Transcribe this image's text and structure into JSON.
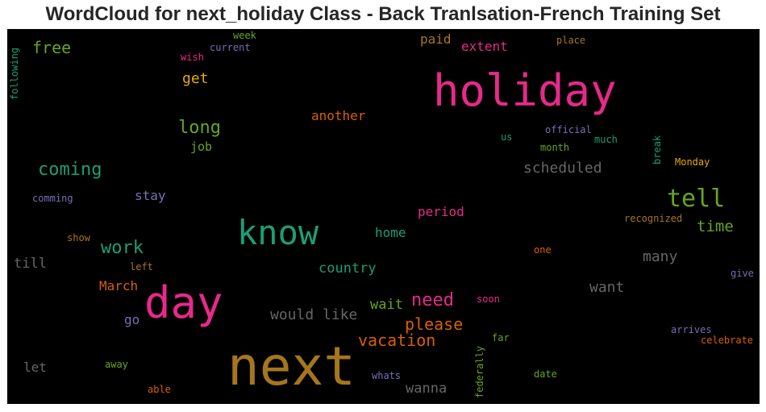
{
  "title": "WordCloud for next_holiday Class - Back Tranlsation-French Training Set",
  "colors": {
    "pink": "#e7298a",
    "gold": "#e6ab02",
    "teal": "#1b9e77",
    "green": "#66a61e",
    "orange": "#d95f02",
    "purple": "#7570b3",
    "brown": "#a6761d",
    "gray": "#666666",
    "background": "#000000"
  },
  "chart_data": {
    "type": "wordcloud",
    "title": "WordCloud for next_holiday Class - Back Tranlsation-French Training Set",
    "words": [
      {
        "text": "next",
        "size": 66,
        "color": "brown",
        "rotated": false
      },
      {
        "text": "holiday",
        "size": 54,
        "color": "pink",
        "rotated": false
      },
      {
        "text": "day",
        "size": 54,
        "color": "pink",
        "rotated": false
      },
      {
        "text": "know",
        "size": 42,
        "color": "teal",
        "rotated": false
      },
      {
        "text": "tell",
        "size": 30,
        "color": "green",
        "rotated": false
      },
      {
        "text": "coming",
        "size": 22,
        "color": "teal",
        "rotated": false
      },
      {
        "text": "long",
        "size": 22,
        "color": "green",
        "rotated": false
      },
      {
        "text": "need",
        "size": 22,
        "color": "pink",
        "rotated": false
      },
      {
        "text": "work",
        "size": 22,
        "color": "teal",
        "rotated": false
      },
      {
        "text": "free",
        "size": 20,
        "color": "green",
        "rotated": false
      },
      {
        "text": "vacation",
        "size": 20,
        "color": "orange",
        "rotated": false
      },
      {
        "text": "please",
        "size": 20,
        "color": "orange",
        "rotated": false
      },
      {
        "text": "time",
        "size": 19,
        "color": "green",
        "rotated": false
      },
      {
        "text": "would like",
        "size": 18,
        "color": "gray",
        "rotated": false
      },
      {
        "text": "scheduled",
        "size": 18,
        "color": "gray",
        "rotated": false
      },
      {
        "text": "many",
        "size": 18,
        "color": "gray",
        "rotated": false
      },
      {
        "text": "want",
        "size": 18,
        "color": "gray",
        "rotated": false
      },
      {
        "text": "get",
        "size": 18,
        "color": "gold",
        "rotated": false
      },
      {
        "text": "wait",
        "size": 17,
        "color": "green",
        "rotated": false
      },
      {
        "text": "country",
        "size": 17,
        "color": "teal",
        "rotated": false
      },
      {
        "text": "wanna",
        "size": 17,
        "color": "gray",
        "rotated": false
      },
      {
        "text": "till",
        "size": 17,
        "color": "gray",
        "rotated": false
      },
      {
        "text": "another",
        "size": 16,
        "color": "orange",
        "rotated": false
      },
      {
        "text": "March",
        "size": 16,
        "color": "orange",
        "rotated": false
      },
      {
        "text": "paid",
        "size": 16,
        "color": "brown",
        "rotated": false
      },
      {
        "text": "extent",
        "size": 16,
        "color": "pink",
        "rotated": false
      },
      {
        "text": "period",
        "size": 16,
        "color": "pink",
        "rotated": false
      },
      {
        "text": "home",
        "size": 16,
        "color": "teal",
        "rotated": false
      },
      {
        "text": "stay",
        "size": 16,
        "color": "purple",
        "rotated": false
      },
      {
        "text": "go",
        "size": 16,
        "color": "purple",
        "rotated": false
      },
      {
        "text": "let",
        "size": 16,
        "color": "gray",
        "rotated": false
      },
      {
        "text": "job",
        "size": 15,
        "color": "green",
        "rotated": false
      },
      {
        "text": "official",
        "size": 12,
        "color": "purple",
        "rotated": false
      },
      {
        "text": "Monday",
        "size": 12,
        "color": "gold",
        "rotated": false
      },
      {
        "text": "recognized",
        "size": 12,
        "color": "brown",
        "rotated": false
      },
      {
        "text": "month",
        "size": 12,
        "color": "green",
        "rotated": false
      },
      {
        "text": "much",
        "size": 12,
        "color": "teal",
        "rotated": false
      },
      {
        "text": "us",
        "size": 12,
        "color": "teal",
        "rotated": false
      },
      {
        "text": "break",
        "size": 12,
        "color": "teal",
        "rotated": true
      },
      {
        "text": "celebrate",
        "size": 12,
        "color": "orange",
        "rotated": false
      },
      {
        "text": "arrives",
        "size": 12,
        "color": "purple",
        "rotated": false
      },
      {
        "text": "give",
        "size": 12,
        "color": "purple",
        "rotated": false
      },
      {
        "text": "one",
        "size": 12,
        "color": "orange",
        "rotated": false
      },
      {
        "text": "soon",
        "size": 12,
        "color": "pink",
        "rotated": false
      },
      {
        "text": "far",
        "size": 12,
        "color": "green",
        "rotated": false
      },
      {
        "text": "date",
        "size": 12,
        "color": "green",
        "rotated": false
      },
      {
        "text": "whats",
        "size": 12,
        "color": "purple",
        "rotated": false
      },
      {
        "text": "federally",
        "size": 12,
        "color": "green",
        "rotated": true
      },
      {
        "text": "able",
        "size": 12,
        "color": "orange",
        "rotated": false
      },
      {
        "text": "away",
        "size": 12,
        "color": "green",
        "rotated": false
      },
      {
        "text": "left",
        "size": 12,
        "color": "brown",
        "rotated": false
      },
      {
        "text": "show",
        "size": 12,
        "color": "brown",
        "rotated": false
      },
      {
        "text": "comming",
        "size": 12,
        "color": "purple",
        "rotated": false
      },
      {
        "text": "wish",
        "size": 12,
        "color": "pink",
        "rotated": false
      },
      {
        "text": "week",
        "size": 12,
        "color": "green",
        "rotated": false
      },
      {
        "text": "current",
        "size": 12,
        "color": "purple",
        "rotated": false
      },
      {
        "text": "place",
        "size": 12,
        "color": "brown",
        "rotated": false
      },
      {
        "text": "following",
        "size": 12,
        "color": "teal",
        "rotated": true
      }
    ]
  }
}
